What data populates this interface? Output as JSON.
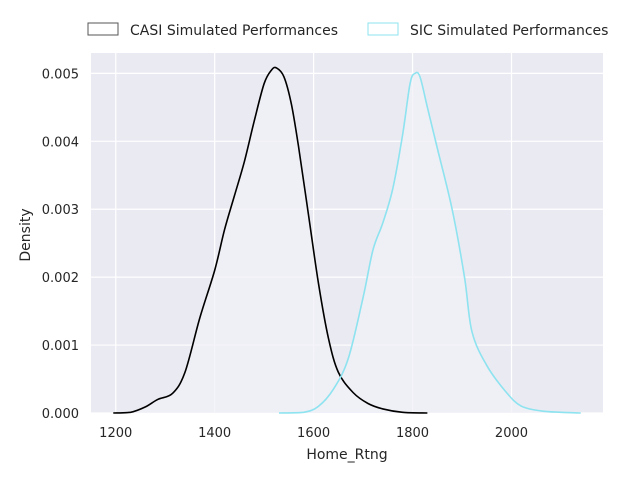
{
  "chart_data": {
    "type": "line",
    "xlabel": "Home_Rtng",
    "ylabel": "Density",
    "xlim": [
      1150,
      2185
    ],
    "ylim": [
      0,
      0.0053
    ],
    "x_ticks": [
      1200,
      1400,
      1600,
      1800,
      2000
    ],
    "x_tick_labels": [
      "1200",
      "1400",
      "1600",
      "1800",
      "2000"
    ],
    "y_ticks": [
      0,
      0.001,
      0.002,
      0.003,
      0.004,
      0.005
    ],
    "y_tick_labels": [
      "0.000",
      "0.001",
      "0.002",
      "0.003",
      "0.004",
      "0.005"
    ],
    "grid": true,
    "legend_position": "top",
    "colors": {
      "plot_bg": "#eaeaf2",
      "grid": "#ffffff",
      "fill": "#f0f0f7"
    },
    "series": [
      {
        "name": "CASI Simulated Performances",
        "color": "#000000",
        "points": [
          [
            1195,
            0.0
          ],
          [
            1230,
            1e-05
          ],
          [
            1260,
            9e-05
          ],
          [
            1285,
            0.0002
          ],
          [
            1315,
            0.00029
          ],
          [
            1340,
            0.0006
          ],
          [
            1370,
            0.0014
          ],
          [
            1400,
            0.0021
          ],
          [
            1420,
            0.0027
          ],
          [
            1440,
            0.0032
          ],
          [
            1460,
            0.0037
          ],
          [
            1480,
            0.0043
          ],
          [
            1500,
            0.00485
          ],
          [
            1515,
            0.00505
          ],
          [
            1525,
            0.00508
          ],
          [
            1540,
            0.00495
          ],
          [
            1555,
            0.00455
          ],
          [
            1570,
            0.0039
          ],
          [
            1590,
            0.0029
          ],
          [
            1610,
            0.0019
          ],
          [
            1630,
            0.0011
          ],
          [
            1650,
            0.0006
          ],
          [
            1680,
            0.0003
          ],
          [
            1710,
            0.00014
          ],
          [
            1740,
            6e-05
          ],
          [
            1780,
            1e-05
          ],
          [
            1830,
            0.0
          ]
        ]
      },
      {
        "name": "SIC Simulated Performances",
        "color": "#8de3ef",
        "points": [
          [
            1530,
            0.0
          ],
          [
            1580,
            1e-05
          ],
          [
            1610,
            0.0001
          ],
          [
            1640,
            0.00035
          ],
          [
            1670,
            0.0008
          ],
          [
            1700,
            0.0017
          ],
          [
            1720,
            0.0024
          ],
          [
            1740,
            0.0028
          ],
          [
            1760,
            0.0033
          ],
          [
            1780,
            0.0041
          ],
          [
            1795,
            0.00485
          ],
          [
            1805,
            0.005
          ],
          [
            1815,
            0.00495
          ],
          [
            1830,
            0.0045
          ],
          [
            1850,
            0.0039
          ],
          [
            1880,
            0.003
          ],
          [
            1905,
            0.002
          ],
          [
            1920,
            0.0012
          ],
          [
            1950,
            0.0007
          ],
          [
            1990,
            0.0003
          ],
          [
            2020,
            0.0001
          ],
          [
            2060,
            3e-05
          ],
          [
            2100,
            1e-05
          ],
          [
            2140,
            0.0
          ]
        ]
      }
    ]
  }
}
